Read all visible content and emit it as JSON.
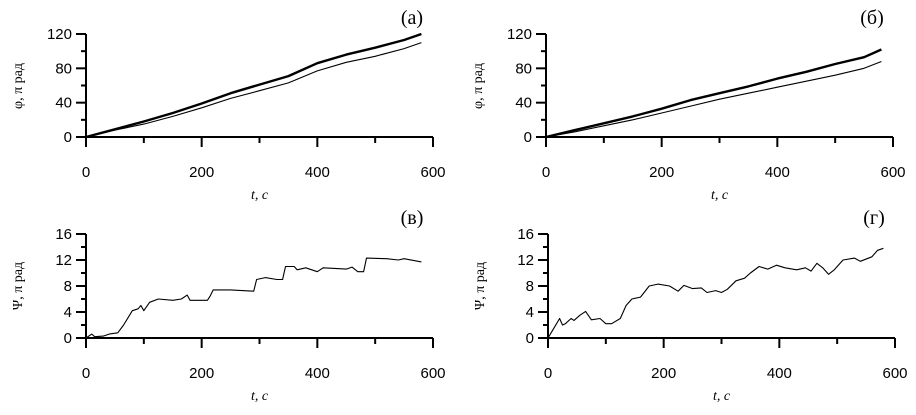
{
  "chart_data": [
    {
      "type": "line",
      "panel_label": "(а)",
      "xlabel": "t, c",
      "ylabel": "φ, π рад",
      "xlim": [
        0,
        600
      ],
      "ylim": [
        0,
        120
      ],
      "xticks": [
        0,
        200,
        400,
        600
      ],
      "yticks": [
        0,
        40,
        80,
        120
      ],
      "series": [
        {
          "name": "thick",
          "x": [
            0,
            50,
            100,
            150,
            200,
            250,
            300,
            350,
            400,
            450,
            500,
            550,
            580
          ],
          "y": [
            0,
            9,
            18,
            28,
            39,
            51,
            61,
            71,
            86,
            96,
            104,
            113,
            120
          ]
        },
        {
          "name": "thin",
          "x": [
            0,
            50,
            100,
            150,
            200,
            250,
            300,
            350,
            400,
            450,
            500,
            550,
            580
          ],
          "y": [
            0,
            8,
            15,
            24,
            34,
            45,
            54,
            63,
            77,
            87,
            94,
            103,
            110
          ]
        }
      ]
    },
    {
      "type": "line",
      "panel_label": "(б)",
      "xlabel": "t, c",
      "ylabel": "φ, π рад",
      "xlim": [
        0,
        600
      ],
      "ylim": [
        0,
        120
      ],
      "xticks": [
        0,
        200,
        400,
        600
      ],
      "yticks": [
        0,
        40,
        80,
        120
      ],
      "series": [
        {
          "name": "thick",
          "x": [
            0,
            50,
            100,
            150,
            200,
            250,
            300,
            350,
            400,
            450,
            500,
            550,
            580
          ],
          "y": [
            0,
            8,
            16,
            24,
            33,
            43,
            51,
            59,
            68,
            76,
            85,
            93,
            102
          ]
        },
        {
          "name": "thin",
          "x": [
            0,
            50,
            100,
            150,
            200,
            250,
            300,
            350,
            400,
            450,
            500,
            550,
            580
          ],
          "y": [
            0,
            6,
            13,
            20,
            28,
            36,
            44,
            51,
            58,
            65,
            72,
            80,
            88
          ]
        }
      ]
    },
    {
      "type": "line",
      "panel_label": "(в)",
      "xlabel": "t, c",
      "ylabel": "Ψ, π рад",
      "xlim": [
        0,
        600
      ],
      "ylim": [
        0,
        16
      ],
      "xticks": [
        0,
        200,
        400,
        600
      ],
      "yticks": [
        0,
        4,
        8,
        12,
        16
      ],
      "series": [
        {
          "name": "psi",
          "x": [
            0,
            10,
            15,
            30,
            40,
            55,
            65,
            80,
            90,
            95,
            100,
            110,
            125,
            150,
            165,
            175,
            180,
            210,
            215,
            220,
            250,
            290,
            295,
            310,
            330,
            340,
            345,
            360,
            365,
            380,
            400,
            410,
            450,
            460,
            470,
            480,
            485,
            520,
            540,
            550,
            580
          ],
          "y": [
            0,
            0.6,
            0.2,
            0.3,
            0.6,
            0.8,
            2,
            4.2,
            4.5,
            5,
            4.2,
            5.5,
            6,
            5.8,
            6,
            6.6,
            5.8,
            5.8,
            6.5,
            7.4,
            7.4,
            7.2,
            9,
            9.3,
            9,
            9,
            11,
            11,
            10.5,
            10.8,
            10.2,
            10.8,
            10.6,
            10.9,
            10.2,
            10.2,
            12.3,
            12.2,
            12,
            12.2,
            11.7
          ]
        }
      ]
    },
    {
      "type": "line",
      "panel_label": "(г)",
      "xlabel": "t, c",
      "ylabel": "Ψ, π рад",
      "xlim": [
        0,
        600
      ],
      "ylim": [
        0,
        16
      ],
      "xticks": [
        0,
        200,
        400,
        600
      ],
      "yticks": [
        0,
        4,
        8,
        12,
        16
      ],
      "series": [
        {
          "name": "psi",
          "x": [
            0,
            10,
            20,
            25,
            30,
            40,
            45,
            55,
            65,
            75,
            90,
            100,
            110,
            125,
            135,
            145,
            160,
            175,
            190,
            210,
            225,
            235,
            250,
            265,
            275,
            290,
            300,
            310,
            325,
            340,
            350,
            365,
            380,
            395,
            410,
            430,
            445,
            455,
            465,
            475,
            485,
            495,
            510,
            530,
            540,
            560,
            570,
            580
          ],
          "y": [
            0,
            1.5,
            3,
            2,
            2.2,
            3,
            2.7,
            3.5,
            4.1,
            2.8,
            3,
            2.2,
            2.2,
            3,
            5,
            6,
            6.3,
            8,
            8.3,
            8,
            7.2,
            8.1,
            7.6,
            7.7,
            7,
            7.3,
            7,
            7.5,
            8.8,
            9.2,
            10,
            11,
            10.6,
            11.2,
            10.8,
            10.5,
            10.8,
            10.3,
            11.5,
            10.8,
            9.8,
            10.5,
            12,
            12.3,
            11.8,
            12.5,
            13.5,
            13.8
          ]
        }
      ]
    }
  ]
}
